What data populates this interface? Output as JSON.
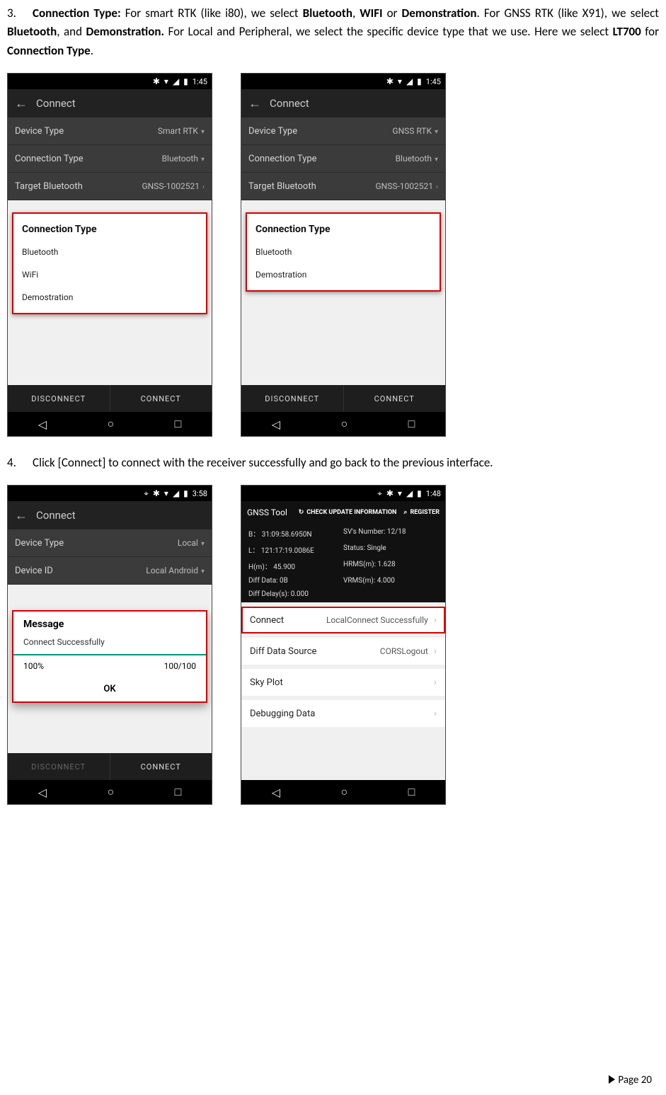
{
  "text": {
    "p3_pre": "3.",
    "p3_body": " Connection Type: For smart RTK (like i80), we select Bluetooth, WIFI or Demonstration. For GNSS RTK (like X91), we select Bluetooth, and Demonstration. For Local and Peripheral, we select the specific device type that we use. Here we select LT700 for Connection Type.",
    "p3_html": "<span class='b'>Connection Type:</span> For smart RTK (like i80), we select <span class='b'>Bluetooth</span>, <span class='b'>WIFI</span> or <span class='b'>Demonstration</span>. For GNSS RTK (like X91), we select <span class='b'>Bluetooth</span>, and <span class='b'>Demonstration.</span> For Local and Peripheral, we select the specific device type that we use. Here we select <span class='b'>LT700</span> for <span class='b'>Connection Type</span>.",
    "p4_pre": "4.",
    "p4_body": "Click [Connect] to connect with the receiver successfully and go back to the previous interface.",
    "footer": "Page 20"
  },
  "status": {
    "time1": "1:45",
    "time2": "3:58",
    "time3": "1:48",
    "bt": "✱",
    "wifi": "▾",
    "sig": "▮",
    "batt": "▮"
  },
  "connect": {
    "title": "Connect",
    "rows": {
      "deviceType": "Device Type",
      "connectionType": "Connection Type",
      "targetBt": "Target Bluetooth",
      "deviceId": "Device ID"
    },
    "vals": {
      "smart": "Smart RTK",
      "gnss": "GNSS RTK",
      "bt": "Bluetooth",
      "target": "GNSS-1002521",
      "local": "Local",
      "localAndroid": "Local Android"
    },
    "dlgTitle": "Connection Type",
    "opts3": [
      "Bluetooth",
      "WiFi",
      "Demostration"
    ],
    "opts2": [
      "Bluetooth",
      "Demostration"
    ],
    "btnDisconnect": "DISCONNECT",
    "btnConnect": "CONNECT"
  },
  "msg": {
    "title": "Message",
    "text": "Connect Successfully",
    "pctL": "100%",
    "pctR": "100/100",
    "ok": "OK"
  },
  "gnss": {
    "title": "GNSS Tool",
    "check": "CHECK UPDATE INFORMATION",
    "reg": "REGISTER",
    "kv": {
      "b": "B：  31:09:58.6950N",
      "sv": "SV's Number:   12/18",
      "l": "L：  121:17:19.0086E",
      "status": "Status:   Single",
      "h": "H(m)：   45.900",
      "hrms": "HRMS(m):   1.628",
      "diff": "Diff Data:   0B",
      "vrms": "VRMS(m):   4.000",
      "delay": "Diff Delay(s):   0.000"
    },
    "items": {
      "connect": "Connect",
      "connectVal": "LocalConnect Successfully",
      "src": "Diff Data Source",
      "srcVal": "CORSLogout",
      "sky": "Sky Plot",
      "dbg": "Debugging Data"
    }
  },
  "colors": {
    "red": "#d40000",
    "dark": "#111",
    "grey": "#3b3b3b"
  }
}
